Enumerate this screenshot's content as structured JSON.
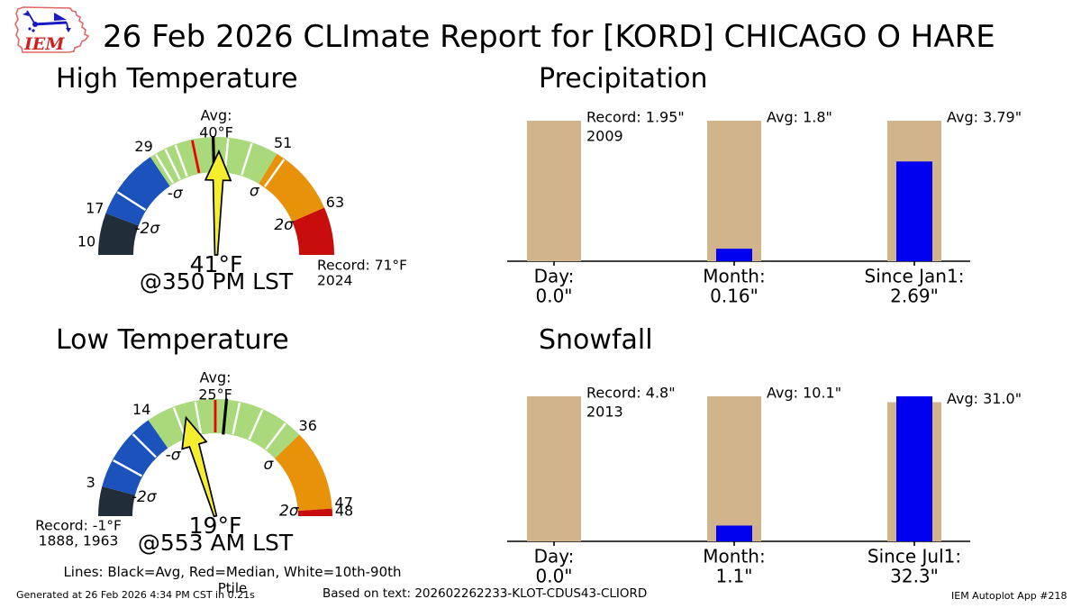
{
  "header": {
    "logo_text": "IEM",
    "title": "26 Feb 2026 CLImate Report for [KORD] CHICAGO O HARE"
  },
  "caption": "Lines: Black=Avg, Red=Median, White=10th-90th Ptile",
  "footer": {
    "generated": "Generated at 26 Feb 2026 4:34 PM CST in 0.21s",
    "based_on": "Based on text: 202602262233-KLOT-CDUS43-CLIORD",
    "app": "IEM Autoplot App #218"
  },
  "colors": {
    "gauge_below_2sigma": "#222d3a",
    "gauge_sigma_band_low": "#1c52bc",
    "gauge_normal_band": "#a9d97b",
    "gauge_sigma_band_high": "#e8920a",
    "gauge_record_band": "#c90d0d",
    "needle": "#f5ee2f",
    "median_line": "#ee0000",
    "avg_line": "#000000",
    "percentile_line": "#ffffff",
    "bar_reference": "#d2b48c",
    "bar_actual": "#0101f0"
  },
  "chart_data": [
    {
      "type": "gauge",
      "title": "High Temperature",
      "unit": "°F",
      "min": 10,
      "max": 71,
      "value": 41,
      "value_label": "41°F",
      "time_label": "@350 PM LST",
      "avg": 40,
      "avg_label": [
        "Avg:",
        "40°F"
      ],
      "median": 36.5,
      "percentile_values": [
        21,
        30,
        31.8,
        33.6,
        42.5,
        46.5,
        52.5
      ],
      "ticks": [
        10,
        17,
        29,
        51,
        63
      ],
      "sigma_labels": [
        {
          "label": "-2σ",
          "at": 17
        },
        {
          "label": "-σ",
          "at": 29
        },
        {
          "label": "σ",
          "at": 51
        },
        {
          "label": "2σ",
          "at": 63
        }
      ],
      "segments": [
        {
          "from": 10,
          "to": 17,
          "color": "#222d3a"
        },
        {
          "from": 17,
          "to": 29,
          "color": "#1c52bc"
        },
        {
          "from": 29,
          "to": 51,
          "color": "#a9d97b"
        },
        {
          "from": 51,
          "to": 63,
          "color": "#e8920a"
        },
        {
          "from": 63,
          "to": 71,
          "color": "#c90d0d"
        }
      ],
      "record_label": [
        "Record: 71°F",
        "2024"
      ]
    },
    {
      "type": "bar",
      "title": "Precipitation",
      "unit": "inch",
      "bar_color_reference": "#d2b48c",
      "bar_color_actual": "#0101f0",
      "groups": [
        {
          "label": "Day:",
          "value_label": "0.0\"",
          "value": 0.0,
          "reference": 1.95,
          "annotation": [
            "Record: 1.95\"",
            "2009"
          ]
        },
        {
          "label": "Month:",
          "value_label": "0.16\"",
          "value": 0.16,
          "reference": 1.8,
          "annotation": [
            "Avg: 1.8\""
          ]
        },
        {
          "label": "Since Jan1:",
          "value_label": "2.69\"",
          "value": 2.69,
          "reference": 3.79,
          "annotation": [
            "Avg: 3.79\""
          ]
        }
      ]
    },
    {
      "type": "gauge",
      "title": "Low Temperature",
      "unit": "°F",
      "min": -1,
      "max": 48,
      "value": 19,
      "value_label": "19°F",
      "time_label": "@553 AM LST",
      "avg": 25,
      "avg_label": [
        "Avg:",
        "25°F"
      ],
      "median": 23.5,
      "percentile_values": [
        6.8,
        11.2,
        17.8,
        20.8,
        26.8,
        30,
        33.6
      ],
      "ticks": [
        3,
        14,
        36,
        47,
        48
      ],
      "sigma_labels": [
        {
          "label": "-2σ",
          "at": 3
        },
        {
          "label": "-σ",
          "at": 14
        },
        {
          "label": "σ",
          "at": 36
        },
        {
          "label": "2σ",
          "at": 47
        }
      ],
      "segments": [
        {
          "from": -1,
          "to": 3,
          "color": "#222d3a"
        },
        {
          "from": 3,
          "to": 14,
          "color": "#1c52bc"
        },
        {
          "from": 14,
          "to": 36,
          "color": "#a9d97b"
        },
        {
          "from": 36,
          "to": 47,
          "color": "#e8920a"
        },
        {
          "from": 47,
          "to": 48,
          "color": "#c90d0d"
        }
      ],
      "record_label": [
        "Record: -1°F",
        "1888, 1963"
      ]
    },
    {
      "type": "bar",
      "title": "Snowfall",
      "unit": "inch",
      "bar_color_reference": "#d2b48c",
      "bar_color_actual": "#0101f0",
      "groups": [
        {
          "label": "Day:",
          "value_label": "0.0\"",
          "value": 0.0,
          "reference": 4.8,
          "annotation": [
            "Record: 4.8\"",
            "2013"
          ]
        },
        {
          "label": "Month:",
          "value_label": "1.1\"",
          "value": 1.1,
          "reference": 10.1,
          "annotation": [
            "Avg: 10.1\""
          ]
        },
        {
          "label": "Since Jul1:",
          "value_label": "32.3\"",
          "value": 32.3,
          "reference": 31.0,
          "annotation": [
            "Avg: 31.0\""
          ]
        }
      ]
    }
  ]
}
